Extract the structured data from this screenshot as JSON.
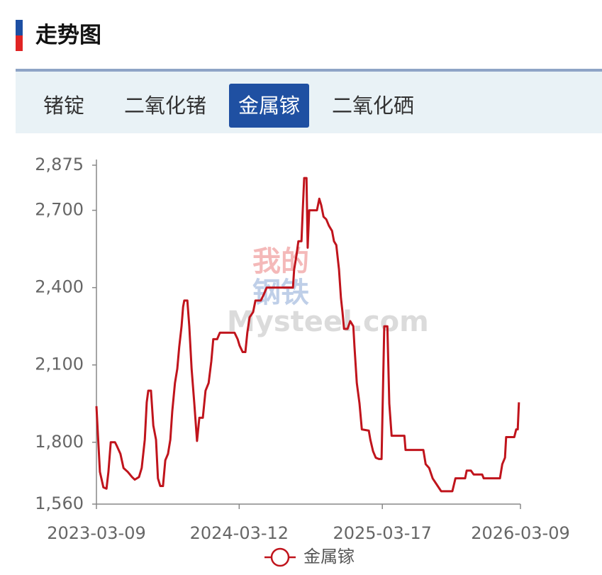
{
  "header": {
    "title": "走势图"
  },
  "tabs": {
    "items": [
      "锗锭",
      "二氧化锗",
      "金属镓",
      "二氧化硒"
    ],
    "selected": 2
  },
  "watermark": {
    "line1": "我的",
    "line2": "钢铁",
    "brand": "Mysteel.com"
  },
  "chart_data": {
    "type": "line",
    "x": [
      "2023-03-09",
      "2023-03-13",
      "2023-03-18",
      "2023-03-27",
      "2023-04-04",
      "2023-04-09",
      "2023-04-15",
      "2023-04-26",
      "2023-05-01",
      "2023-05-10",
      "2023-05-18",
      "2023-05-29",
      "2023-06-09",
      "2023-06-16",
      "2023-06-27",
      "2023-07-04",
      "2023-07-12",
      "2023-07-17",
      "2023-07-21",
      "2023-07-28",
      "2023-08-03",
      "2023-08-10",
      "2023-08-15",
      "2023-08-21",
      "2023-08-28",
      "2023-09-03",
      "2023-09-10",
      "2023-09-16",
      "2023-09-21",
      "2023-09-28",
      "2023-10-04",
      "2023-10-09",
      "2023-10-15",
      "2023-10-19",
      "2023-10-22",
      "2023-10-30",
      "2023-11-04",
      "2023-11-10",
      "2023-11-17",
      "2023-11-24",
      "2023-11-30",
      "2023-12-09",
      "2023-12-16",
      "2023-12-24",
      "2023-12-31",
      "2024-01-05",
      "2024-01-15",
      "2024-01-22",
      "2024-02-29",
      "2024-03-08",
      "2024-03-13",
      "2024-03-21",
      "2024-03-28",
      "2024-04-02",
      "2024-04-08",
      "2024-04-17",
      "2024-04-23",
      "2024-05-07",
      "2024-05-15",
      "2024-05-22",
      "2024-07-29",
      "2024-08-01",
      "2024-08-07",
      "2024-08-12",
      "2024-08-20",
      "2024-08-23",
      "2024-08-27",
      "2024-09-02",
      "2024-09-05",
      "2024-09-09",
      "2024-09-29",
      "2024-10-05",
      "2024-10-10",
      "2024-10-16",
      "2024-10-23",
      "2024-10-30",
      "2024-11-07",
      "2024-11-12",
      "2024-11-18",
      "2024-11-25",
      "2024-11-30",
      "2024-12-04",
      "2024-12-08",
      "2024-12-17",
      "2024-12-24",
      "2025-01-01",
      "2025-01-04",
      "2025-01-10",
      "2025-01-17",
      "2025-01-23",
      "2025-02-10",
      "2025-02-14",
      "2025-02-21",
      "2025-02-28",
      "2025-03-08",
      "2025-03-15",
      "2025-03-19",
      "2025-03-22",
      "2025-03-30",
      "2025-04-04",
      "2025-04-10",
      "2025-05-13",
      "2025-05-16",
      "2025-07-01",
      "2025-07-07",
      "2025-07-16",
      "2025-07-25",
      "2025-08-05",
      "2025-08-16",
      "2025-09-14",
      "2025-09-22",
      "2025-10-17",
      "2025-10-21",
      "2025-11-01",
      "2025-11-08",
      "2025-11-30",
      "2025-12-04",
      "2026-01-15",
      "2026-01-21",
      "2026-01-28",
      "2026-01-31",
      "2026-02-21",
      "2026-02-26",
      "2026-03-02",
      "2026-03-05"
    ],
    "series": [
      {
        "name": "金属镓",
        "color": "#c0141c",
        "values": [
          1940,
          1825,
          1685,
          1625,
          1620,
          1685,
          1800,
          1800,
          1785,
          1755,
          1700,
          1685,
          1665,
          1655,
          1665,
          1700,
          1810,
          1955,
          2000,
          2000,
          1865,
          1810,
          1660,
          1630,
          1630,
          1730,
          1755,
          1810,
          1920,
          2030,
          2085,
          2170,
          2250,
          2325,
          2350,
          2350,
          2250,
          2085,
          1950,
          1805,
          1895,
          1895,
          2000,
          2030,
          2115,
          2200,
          2200,
          2225,
          2225,
          2200,
          2175,
          2150,
          2150,
          2225,
          2285,
          2305,
          2350,
          2350,
          2375,
          2400,
          2400,
          2470,
          2525,
          2580,
          2580,
          2690,
          2825,
          2825,
          2555,
          2700,
          2700,
          2745,
          2720,
          2675,
          2665,
          2640,
          2620,
          2580,
          2565,
          2470,
          2360,
          2305,
          2240,
          2240,
          2270,
          2250,
          2170,
          2030,
          1950,
          1850,
          1845,
          1810,
          1765,
          1740,
          1735,
          1735,
          2030,
          2250,
          2250,
          1950,
          1825,
          1825,
          1770,
          1770,
          1715,
          1700,
          1660,
          1635,
          1610,
          1610,
          1660,
          1660,
          1690,
          1690,
          1675,
          1675,
          1660,
          1660,
          1715,
          1740,
          1820,
          1820,
          1850,
          1850,
          1955
        ]
      }
    ],
    "xlim": [
      "2023-03-09",
      "2026-03-09"
    ],
    "xticks": [
      "2023-03-09",
      "2024-03-12",
      "2025-03-17",
      "2026-03-09"
    ],
    "ylim": [
      1560,
      2875
    ],
    "yticks": [
      {
        "value": 1560,
        "label": "1,560"
      },
      {
        "value": 1800,
        "label": "1,800"
      },
      {
        "value": 2100,
        "label": "2,100"
      },
      {
        "value": 2400,
        "label": "2,400"
      },
      {
        "value": 2700,
        "label": "2,700"
      },
      {
        "value": 2875,
        "label": "2,875"
      }
    ],
    "grid": false
  }
}
